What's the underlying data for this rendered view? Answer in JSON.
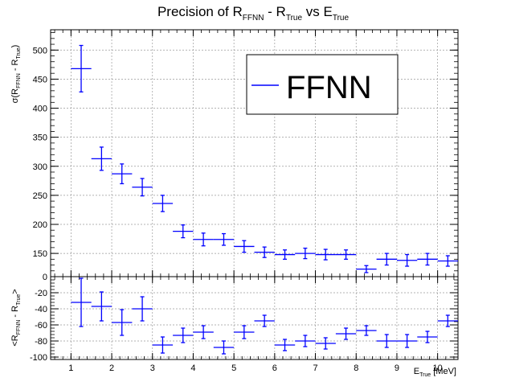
{
  "chart_data": [
    {
      "type": "scatter",
      "panel": "top",
      "title": {
        "main": "Precision of R",
        "sub1": "FFNN",
        "mid": " - R",
        "sub2": "True",
        "tail": " vs E",
        "sub3": "True"
      },
      "ylabel": {
        "pre": "σ(R",
        "sub1": "FFNN",
        "mid": " - R",
        "sub2": "True",
        "post": ")"
      },
      "ylim": [
        110,
        535
      ],
      "yticks": [
        150,
        200,
        250,
        300,
        350,
        400,
        450,
        500
      ],
      "grid": true,
      "legend": {
        "label": "FFNN",
        "placement": "top-right"
      },
      "series": [
        {
          "name": "FFNN",
          "color": "#0000ff",
          "x": [
            1.25,
            1.75,
            2.25,
            2.75,
            3.25,
            3.75,
            4.25,
            4.75,
            5.25,
            5.75,
            6.25,
            6.75,
            7.25,
            7.75,
            8.25,
            8.75,
            9.25,
            9.75,
            10.25
          ],
          "y": [
            468,
            313,
            287,
            264,
            236,
            188,
            174,
            174,
            162,
            152,
            148,
            150,
            148,
            148,
            123,
            140,
            138,
            140,
            137
          ],
          "yerr": [
            40,
            20,
            17,
            15,
            14,
            11,
            11,
            10,
            10,
            9,
            8,
            9,
            9,
            8,
            6,
            10,
            10,
            10,
            9
          ],
          "xerr": 0.25
        }
      ]
    },
    {
      "type": "scatter",
      "panel": "bottom",
      "ylabel": {
        "pre": "<R",
        "sub1": "FFNN",
        "mid": " - R",
        "sub2": "True",
        "post": ">"
      },
      "xlabel": {
        "pre": "E",
        "sub": "True",
        "post": " [MeV]"
      },
      "xlim": [
        0.5,
        10.5
      ],
      "xticks": [
        1,
        2,
        3,
        4,
        5,
        6,
        7,
        8,
        9,
        10
      ],
      "ylim": [
        -103,
        0
      ],
      "yticks": [
        -100,
        -80,
        -60,
        -40,
        -20,
        0
      ],
      "grid": true,
      "series": [
        {
          "name": "FFNN",
          "color": "#0000ff",
          "x": [
            1.25,
            1.75,
            2.25,
            2.75,
            3.25,
            3.75,
            4.25,
            4.75,
            5.25,
            5.75,
            6.25,
            6.75,
            7.25,
            7.75,
            8.25,
            8.75,
            9.25,
            9.75,
            10.25
          ],
          "y": [
            -32,
            -37,
            -57,
            -40,
            -85,
            -73,
            -69,
            -88,
            -69,
            -55,
            -85,
            -80,
            -83,
            -71,
            -67,
            -80,
            -80,
            -75,
            -55
          ],
          "yerr": [
            30,
            18,
            16,
            15,
            10,
            9,
            8,
            8,
            8,
            7,
            7,
            7,
            7,
            7,
            6,
            8,
            8,
            7,
            7
          ],
          "xerr": 0.25
        }
      ]
    }
  ]
}
